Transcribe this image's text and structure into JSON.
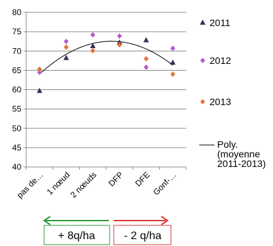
{
  "chart_data": {
    "type": "scatter",
    "categories": [
      "pas de…",
      "1 nœud",
      "2 nœuds",
      "DFP",
      "DFE",
      "Gonf-…"
    ],
    "ylim": [
      40,
      80
    ],
    "yticks": [
      40,
      45,
      50,
      55,
      60,
      65,
      70,
      75,
      80
    ],
    "grid": true,
    "legend_position": "right",
    "series": [
      {
        "name": "2011",
        "marker": "triangle",
        "color": "#3f2a56",
        "values": [
          59.7,
          68.2,
          71.3,
          72.2,
          72.8,
          67.0
        ]
      },
      {
        "name": "2012",
        "marker": "diamond",
        "color": "#b25ccf",
        "values": [
          64.5,
          72.5,
          74.2,
          73.9,
          65.8,
          70.7
        ]
      },
      {
        "name": "2013",
        "marker": "diamond",
        "color": "#e5733a",
        "values": [
          65.3,
          71.0,
          70.1,
          71.6,
          68.0,
          64.0
        ]
      }
    ],
    "trendline": {
      "name": "Poly. (moyenne 2011-2013)",
      "name_lines": [
        "Poly.",
        "(moyenne",
        "2011-2013)"
      ],
      "color": "#000000",
      "values": [
        63.6,
        69.9,
        71.9,
        72.2,
        70.2,
        66.6
      ]
    }
  },
  "annotations": [
    {
      "label": "+ 8q/ha",
      "color": "#2e9a3b",
      "direction": "left"
    },
    {
      "label": "- 2 q/ha",
      "color": "#d83a3a",
      "direction": "right"
    }
  ]
}
